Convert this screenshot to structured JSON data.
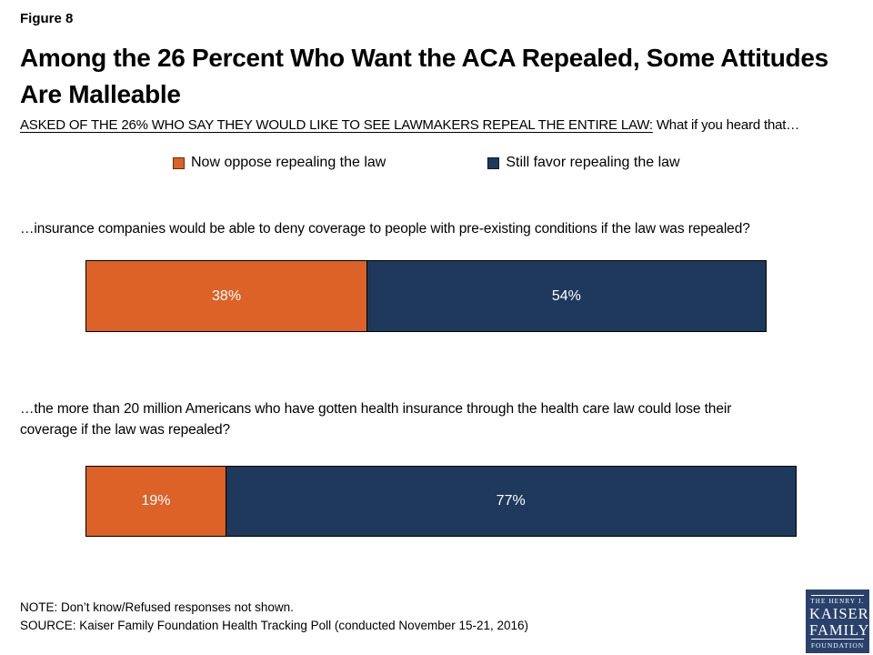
{
  "header": {
    "figure_label": "Figure 8",
    "title": "Among the 26 Percent Who Want the ACA Repealed, Some Attitudes Are Malleable",
    "subtitle_emphasis": "ASKED OF THE 26% WHO SAY THEY WOULD LIKE TO SEE LAWMAKERS REPEAL THE ENTIRE LAW:",
    "subtitle_rest": " What if you heard that…"
  },
  "chart_data": {
    "type": "bar",
    "orientation": "horizontal",
    "stacked": true,
    "unit": "percent",
    "xlim": [
      0,
      100
    ],
    "grid": false,
    "legend_position": "top",
    "categories": [
      "…insurance companies would be able to deny coverage to people with pre-existing conditions if the law was repealed?",
      "…the more than 20 million Americans who have gotten health insurance through the health care law could lose their coverage if the law was repealed?"
    ],
    "series": [
      {
        "name": "Now oppose repealing the law",
        "color": "#DC6227",
        "values": [
          38,
          19
        ],
        "labels": [
          "38%",
          "19%"
        ]
      },
      {
        "name": "Still favor repealing the law",
        "color": "#1E395B",
        "values": [
          54,
          77
        ],
        "labels": [
          "54%",
          "77%"
        ]
      }
    ]
  },
  "footer": {
    "note": "NOTE: Don’t know/Refused responses not shown.",
    "source": "SOURCE: Kaiser Family Foundation Health Tracking Poll (conducted November 15-21, 2016)"
  },
  "logo": {
    "line1": "THE HENRY J.",
    "line2": "KAISER",
    "line3": "FAMILY",
    "line4": "FOUNDATION"
  },
  "colors": {
    "oppose_orange": "#DC6227",
    "favor_navy": "#1E395B",
    "logo_navy": "#2A426B",
    "bar_border": "#000000"
  }
}
